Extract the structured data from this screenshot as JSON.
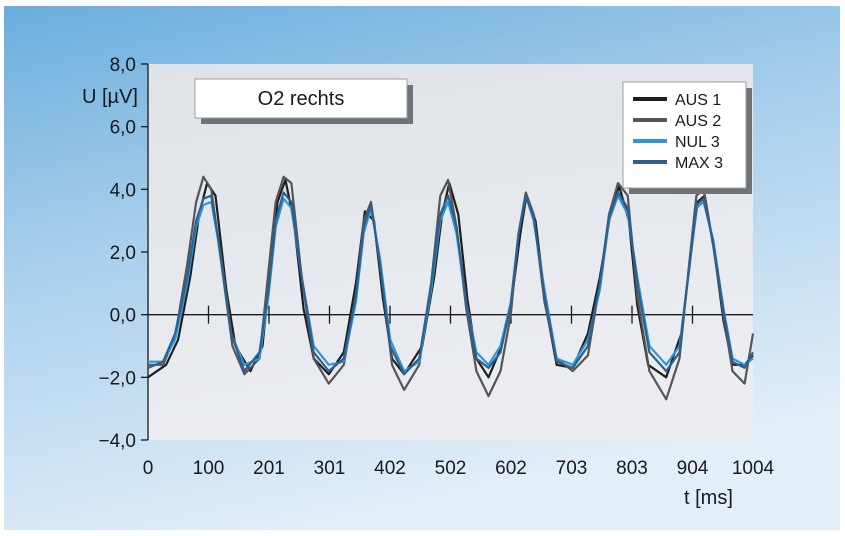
{
  "chart_data": {
    "type": "line",
    "title": "O2 rechts",
    "ylabel": "U [µV]",
    "xlabel": "t [ms]",
    "ylim": [
      -4.0,
      8.0
    ],
    "xlim": [
      0,
      1004
    ],
    "yticks": [
      "8,0",
      "6,0",
      "4,0",
      "2,0",
      "0,0",
      "−2,0",
      "−4,0"
    ],
    "xticks": [
      "0",
      "100",
      "201",
      "301",
      "402",
      "502",
      "602",
      "703",
      "803",
      "904",
      "1004"
    ],
    "grid": false,
    "legend_position": "top-right",
    "series": [
      {
        "name": "AUS 1",
        "color": "#1e1e1e",
        "values": [
          [
            0,
            -2.0
          ],
          [
            30,
            -1.6
          ],
          [
            50,
            -0.8
          ],
          [
            70,
            1.2
          ],
          [
            85,
            3.2
          ],
          [
            98,
            4.2
          ],
          [
            112,
            3.8
          ],
          [
            130,
            0.8
          ],
          [
            145,
            -1.0
          ],
          [
            170,
            -1.8
          ],
          [
            190,
            -1.0
          ],
          [
            205,
            1.8
          ],
          [
            215,
            3.6
          ],
          [
            228,
            4.3
          ],
          [
            242,
            3.0
          ],
          [
            258,
            0.2
          ],
          [
            275,
            -1.4
          ],
          [
            300,
            -1.9
          ],
          [
            325,
            -1.2
          ],
          [
            345,
            1.0
          ],
          [
            360,
            3.3
          ],
          [
            375,
            3.0
          ],
          [
            390,
            0.5
          ],
          [
            405,
            -1.4
          ],
          [
            425,
            -1.9
          ],
          [
            455,
            -1.0
          ],
          [
            475,
            1.2
          ],
          [
            488,
            3.2
          ],
          [
            500,
            4.2
          ],
          [
            515,
            3.2
          ],
          [
            530,
            0.5
          ],
          [
            545,
            -1.4
          ],
          [
            565,
            -2.0
          ],
          [
            585,
            -1.1
          ],
          [
            603,
            0.4
          ],
          [
            618,
            2.6
          ],
          [
            628,
            3.8
          ],
          [
            643,
            3.0
          ],
          [
            660,
            0.3
          ],
          [
            678,
            -1.6
          ],
          [
            705,
            -1.7
          ],
          [
            730,
            -0.6
          ],
          [
            750,
            1.2
          ],
          [
            768,
            3.3
          ],
          [
            782,
            4.1
          ],
          [
            798,
            3.0
          ],
          [
            812,
            0.3
          ],
          [
            830,
            -1.6
          ],
          [
            860,
            -2.0
          ],
          [
            885,
            -0.6
          ],
          [
            900,
            1.8
          ],
          [
            912,
            3.6
          ],
          [
            924,
            3.8
          ],
          [
            940,
            2.0
          ],
          [
            955,
            -0.2
          ],
          [
            970,
            -1.6
          ],
          [
            990,
            -1.6
          ],
          [
            1004,
            -1.3
          ]
        ]
      },
      {
        "name": "AUS 2",
        "color": "#555555",
        "values": [
          [
            0,
            -1.6
          ],
          [
            25,
            -1.6
          ],
          [
            45,
            -0.7
          ],
          [
            65,
            1.6
          ],
          [
            80,
            3.6
          ],
          [
            92,
            4.4
          ],
          [
            105,
            4.0
          ],
          [
            122,
            1.6
          ],
          [
            140,
            -1.0
          ],
          [
            160,
            -1.9
          ],
          [
            185,
            -1.4
          ],
          [
            200,
            1.4
          ],
          [
            212,
            3.6
          ],
          [
            225,
            4.4
          ],
          [
            238,
            4.2
          ],
          [
            255,
            1.2
          ],
          [
            275,
            -1.4
          ],
          [
            300,
            -2.2
          ],
          [
            325,
            -1.6
          ],
          [
            345,
            0.6
          ],
          [
            358,
            3.0
          ],
          [
            370,
            3.6
          ],
          [
            388,
            1.2
          ],
          [
            405,
            -1.6
          ],
          [
            425,
            -2.4
          ],
          [
            450,
            -1.6
          ],
          [
            470,
            1.0
          ],
          [
            485,
            3.8
          ],
          [
            498,
            4.3
          ],
          [
            512,
            2.8
          ],
          [
            528,
            0.2
          ],
          [
            545,
            -1.8
          ],
          [
            565,
            -2.6
          ],
          [
            585,
            -1.8
          ],
          [
            602,
            0.0
          ],
          [
            615,
            2.6
          ],
          [
            627,
            3.9
          ],
          [
            640,
            3.2
          ],
          [
            658,
            0.4
          ],
          [
            678,
            -1.4
          ],
          [
            705,
            -1.8
          ],
          [
            730,
            -1.3
          ],
          [
            750,
            1.0
          ],
          [
            765,
            3.2
          ],
          [
            780,
            4.2
          ],
          [
            796,
            3.8
          ],
          [
            812,
            0.6
          ],
          [
            832,
            -1.8
          ],
          [
            860,
            -2.7
          ],
          [
            882,
            -1.4
          ],
          [
            898,
            1.6
          ],
          [
            910,
            3.8
          ],
          [
            922,
            4.0
          ],
          [
            938,
            2.2
          ],
          [
            955,
            0.0
          ],
          [
            970,
            -1.8
          ],
          [
            990,
            -2.2
          ],
          [
            1004,
            -0.6
          ]
        ]
      },
      {
        "name": "NUL 3",
        "color": "#2f97d6",
        "values": [
          [
            0,
            -1.5
          ],
          [
            25,
            -1.5
          ],
          [
            45,
            -0.8
          ],
          [
            65,
            1.0
          ],
          [
            80,
            2.8
          ],
          [
            92,
            3.5
          ],
          [
            105,
            3.6
          ],
          [
            120,
            2.0
          ],
          [
            138,
            -0.6
          ],
          [
            160,
            -1.6
          ],
          [
            185,
            -1.4
          ],
          [
            200,
            0.6
          ],
          [
            212,
            2.8
          ],
          [
            225,
            3.7
          ],
          [
            238,
            3.4
          ],
          [
            255,
            1.2
          ],
          [
            275,
            -1.0
          ],
          [
            300,
            -1.6
          ],
          [
            325,
            -1.5
          ],
          [
            345,
            0.4
          ],
          [
            358,
            2.6
          ],
          [
            370,
            3.4
          ],
          [
            385,
            1.8
          ],
          [
            402,
            -0.8
          ],
          [
            425,
            -1.8
          ],
          [
            450,
            -1.5
          ],
          [
            470,
            0.8
          ],
          [
            485,
            3.0
          ],
          [
            498,
            3.6
          ],
          [
            512,
            2.6
          ],
          [
            528,
            0.4
          ],
          [
            545,
            -1.2
          ],
          [
            565,
            -1.6
          ],
          [
            585,
            -1.0
          ],
          [
            602,
            0.4
          ],
          [
            615,
            2.6
          ],
          [
            627,
            3.8
          ],
          [
            640,
            3.0
          ],
          [
            658,
            0.8
          ],
          [
            678,
            -1.4
          ],
          [
            705,
            -1.6
          ],
          [
            730,
            -0.8
          ],
          [
            750,
            0.8
          ],
          [
            765,
            3.0
          ],
          [
            780,
            3.8
          ],
          [
            796,
            3.2
          ],
          [
            812,
            1.2
          ],
          [
            832,
            -1.0
          ],
          [
            860,
            -1.6
          ],
          [
            882,
            -1.0
          ],
          [
            898,
            1.4
          ],
          [
            910,
            3.4
          ],
          [
            922,
            3.6
          ],
          [
            938,
            2.4
          ],
          [
            955,
            0.2
          ],
          [
            970,
            -1.4
          ],
          [
            990,
            -1.6
          ],
          [
            1004,
            -1.4
          ]
        ]
      },
      {
        "name": "MAX 3",
        "color": "#2f5f8f",
        "values": [
          [
            0,
            -1.7
          ],
          [
            25,
            -1.5
          ],
          [
            45,
            -0.6
          ],
          [
            65,
            1.2
          ],
          [
            80,
            3.0
          ],
          [
            92,
            3.7
          ],
          [
            105,
            3.8
          ],
          [
            120,
            2.0
          ],
          [
            138,
            -0.6
          ],
          [
            160,
            -1.8
          ],
          [
            185,
            -1.2
          ],
          [
            200,
            0.8
          ],
          [
            212,
            3.0
          ],
          [
            225,
            3.9
          ],
          [
            238,
            3.6
          ],
          [
            255,
            1.2
          ],
          [
            275,
            -1.2
          ],
          [
            300,
            -1.8
          ],
          [
            325,
            -1.4
          ],
          [
            345,
            0.6
          ],
          [
            358,
            2.8
          ],
          [
            370,
            3.5
          ],
          [
            385,
            1.6
          ],
          [
            402,
            -1.0
          ],
          [
            425,
            -1.9
          ],
          [
            450,
            -1.4
          ],
          [
            470,
            1.0
          ],
          [
            485,
            3.2
          ],
          [
            498,
            3.8
          ],
          [
            512,
            2.8
          ],
          [
            528,
            0.4
          ],
          [
            545,
            -1.4
          ],
          [
            565,
            -1.7
          ],
          [
            585,
            -1.2
          ],
          [
            602,
            0.3
          ],
          [
            615,
            2.6
          ],
          [
            627,
            3.8
          ],
          [
            640,
            3.1
          ],
          [
            658,
            0.6
          ],
          [
            678,
            -1.5
          ],
          [
            705,
            -1.7
          ],
          [
            730,
            -1.0
          ],
          [
            750,
            1.0
          ],
          [
            765,
            3.1
          ],
          [
            780,
            3.9
          ],
          [
            796,
            3.4
          ],
          [
            812,
            1.0
          ],
          [
            832,
            -1.2
          ],
          [
            860,
            -1.8
          ],
          [
            882,
            -1.2
          ],
          [
            898,
            1.5
          ],
          [
            910,
            3.5
          ],
          [
            922,
            3.7
          ],
          [
            938,
            2.3
          ],
          [
            955,
            0.1
          ],
          [
            970,
            -1.5
          ],
          [
            990,
            -1.7
          ],
          [
            1004,
            -1.2
          ]
        ]
      }
    ]
  }
}
